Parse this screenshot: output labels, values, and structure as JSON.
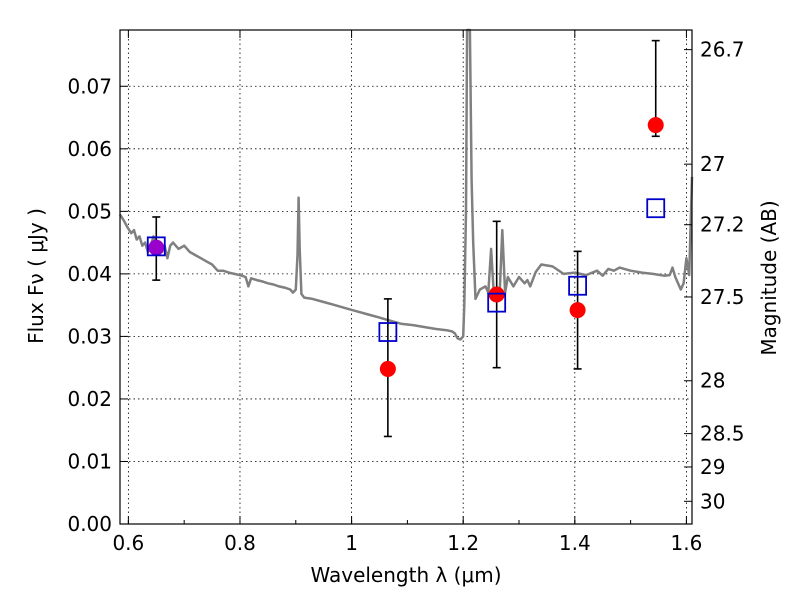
{
  "chart_data": {
    "type": "scatter",
    "xlabel": "Wavelength  λ (μm)",
    "ylabel": "Flux  Fν  ( μJy )",
    "y2label": "Magnitude (AB)",
    "xlim": [
      0.585,
      1.61
    ],
    "ylim": [
      0.0,
      0.079
    ],
    "grid": true,
    "x_ticks": [
      0.6,
      0.8,
      1.0,
      1.2,
      1.4,
      1.6
    ],
    "x_tick_labels": [
      "0.6",
      "0.8",
      "1",
      "1.2",
      "1.4",
      "1.6"
    ],
    "y_ticks": [
      0.0,
      0.01,
      0.02,
      0.03,
      0.04,
      0.05,
      0.06,
      0.07
    ],
    "y_tick_labels": [
      "0.00",
      "0.01",
      "0.02",
      "0.03",
      "0.04",
      "0.05",
      "0.06",
      "0.07"
    ],
    "mag_ticks": [
      26.7,
      27,
      27.2,
      27.5,
      28,
      28.5,
      29,
      30
    ],
    "mag_tick_labels": [
      "26.7",
      "27",
      "27.2",
      "27.5",
      "28",
      "28.5",
      "29",
      "30"
    ],
    "colors": {
      "spectrum": "#808080",
      "observed": "#ff0000",
      "model": "#0000cc",
      "errorbar": "#000000",
      "overlap": "#9900cc"
    },
    "series": [
      {
        "kind": "model_spectrum",
        "x": [
          0.585,
          0.592,
          0.598,
          0.605,
          0.61,
          0.615,
          0.62,
          0.625,
          0.63,
          0.635,
          0.64,
          0.645,
          0.65,
          0.655,
          0.66,
          0.665,
          0.67,
          0.675,
          0.68,
          0.69,
          0.7,
          0.71,
          0.72,
          0.73,
          0.74,
          0.75,
          0.76,
          0.77,
          0.78,
          0.79,
          0.8,
          0.81,
          0.815,
          0.82,
          0.83,
          0.84,
          0.85,
          0.86,
          0.87,
          0.88,
          0.89,
          0.895,
          0.9,
          0.903,
          0.905,
          0.907,
          0.91,
          0.915,
          0.93,
          0.95,
          0.97,
          0.99,
          1.01,
          1.03,
          1.05,
          1.07,
          1.09,
          1.11,
          1.13,
          1.15,
          1.17,
          1.18,
          1.185,
          1.19,
          1.195,
          1.2,
          1.202,
          1.205,
          1.207,
          1.209,
          1.212,
          1.215,
          1.218,
          1.222,
          1.23,
          1.24,
          1.245,
          1.25,
          1.255,
          1.26,
          1.265,
          1.27,
          1.275,
          1.28,
          1.29,
          1.3,
          1.31,
          1.315,
          1.32,
          1.33,
          1.34,
          1.36,
          1.38,
          1.4,
          1.42,
          1.44,
          1.45,
          1.46,
          1.47,
          1.48,
          1.5,
          1.52,
          1.54,
          1.56,
          1.57,
          1.575,
          1.58,
          1.585,
          1.59,
          1.595,
          1.6,
          1.605,
          1.61
        ],
        "values": [
          0.0495,
          0.0485,
          0.0475,
          0.0465,
          0.047,
          0.0455,
          0.046,
          0.0445,
          0.045,
          0.0435,
          0.0445,
          0.046,
          0.0445,
          0.0445,
          0.0435,
          0.0445,
          0.0425,
          0.0445,
          0.045,
          0.044,
          0.0445,
          0.0435,
          0.043,
          0.0425,
          0.042,
          0.0415,
          0.0405,
          0.0405,
          0.0402,
          0.04,
          0.0398,
          0.0395,
          0.038,
          0.0393,
          0.039,
          0.0388,
          0.0385,
          0.0383,
          0.038,
          0.0378,
          0.0375,
          0.037,
          0.0375,
          0.043,
          0.0522,
          0.044,
          0.0368,
          0.0362,
          0.036,
          0.0355,
          0.035,
          0.0345,
          0.034,
          0.0335,
          0.033,
          0.0325,
          0.032,
          0.0318,
          0.0315,
          0.0312,
          0.031,
          0.0308,
          0.0305,
          0.0297,
          0.0295,
          0.03,
          0.035,
          0.05,
          0.079,
          0.079,
          0.079,
          0.055,
          0.045,
          0.036,
          0.0375,
          0.038,
          0.037,
          0.044,
          0.0365,
          0.0375,
          0.0362,
          0.047,
          0.037,
          0.0395,
          0.038,
          0.0395,
          0.0385,
          0.039,
          0.038,
          0.0403,
          0.0415,
          0.0412,
          0.04,
          0.0402,
          0.0398,
          0.0405,
          0.0397,
          0.0408,
          0.0405,
          0.041,
          0.0405,
          0.0402,
          0.04,
          0.0397,
          0.0398,
          0.041,
          0.0395,
          0.0385,
          0.0375,
          0.0385,
          0.0425,
          0.0398,
          0.0555
        ]
      },
      {
        "kind": "model_photometry",
        "x": [
          0.65,
          1.065,
          1.26,
          1.405,
          1.545
        ],
        "values": [
          0.0444,
          0.0307,
          0.0354,
          0.0381,
          0.0505
        ]
      },
      {
        "kind": "observed_photometry",
        "x": [
          0.65,
          1.065,
          1.26,
          1.405,
          1.545
        ],
        "values": [
          0.0442,
          0.0248,
          0.0367,
          0.0342,
          0.0638
        ],
        "err_low": [
          0.0052,
          0.0108,
          0.0117,
          0.0094,
          0.0018
        ],
        "err_high": [
          0.0049,
          0.0112,
          0.0117,
          0.0094,
          0.0135
        ]
      }
    ]
  }
}
